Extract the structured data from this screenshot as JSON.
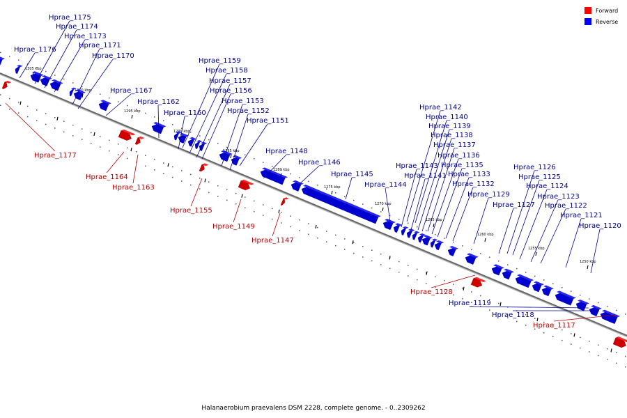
{
  "caption": "Halanaerobium praevalens DSM 2228, complete genome. - 0..2309262",
  "legend": [
    {
      "label": "Forward",
      "color": "#ff0000"
    },
    {
      "label": "Reverse",
      "color": "#0000ff"
    }
  ],
  "colors": {
    "forward": "#ff0000",
    "reverse": "#0000ff",
    "forward_label": "#b00000",
    "reverse_label": "#00008b",
    "axis": "#666666"
  },
  "ticks": [
    "1305 kbp",
    "1300 kbp",
    "1295 kbp",
    "1290 kbp",
    "1285 kbp",
    "1280 kbp",
    "1275 kbp",
    "1270 kbp",
    "1265 kbp",
    "1260 kbp",
    "1255 kbp",
    "1250 kbp"
  ],
  "forward_labels": [
    "Hprae_1177",
    "Hprae_1164",
    "Hprae_1163",
    "Hprae_1155",
    "Hprae_1149",
    "Hprae_1147",
    "Hprae_1128",
    "Hprae_1117"
  ],
  "reverse_labels": [
    "Hprae_1176",
    "Hprae_1175",
    "Hprae_1174",
    "Hprae_1173",
    "Hprae_1171",
    "Hprae_1170",
    "Hprae_1167",
    "Hprae_1162",
    "Hprae_1160",
    "Hprae_1159",
    "Hprae_1158",
    "Hprae_1157",
    "Hprae_1156",
    "Hprae_1153",
    "Hprae_1152",
    "Hprae_1151",
    "Hprae_1148",
    "Hprae_1146",
    "Hprae_1145",
    "Hprae_1144",
    "Hprae_1143",
    "Hprae_1142",
    "Hprae_1141",
    "Hprae_1140",
    "Hprae_1139",
    "Hprae_1138",
    "Hprae_1137",
    "Hprae_1136",
    "Hprae_1135",
    "Hprae_1133",
    "Hprae_1132",
    "Hprae_1129",
    "Hprae_1127",
    "Hprae_1126",
    "Hprae_1125",
    "Hprae_1124",
    "Hprae_1123",
    "Hprae_1122",
    "Hprae_1121",
    "Hprae_1120",
    "Hprae_1119",
    "Hprae_1118"
  ]
}
